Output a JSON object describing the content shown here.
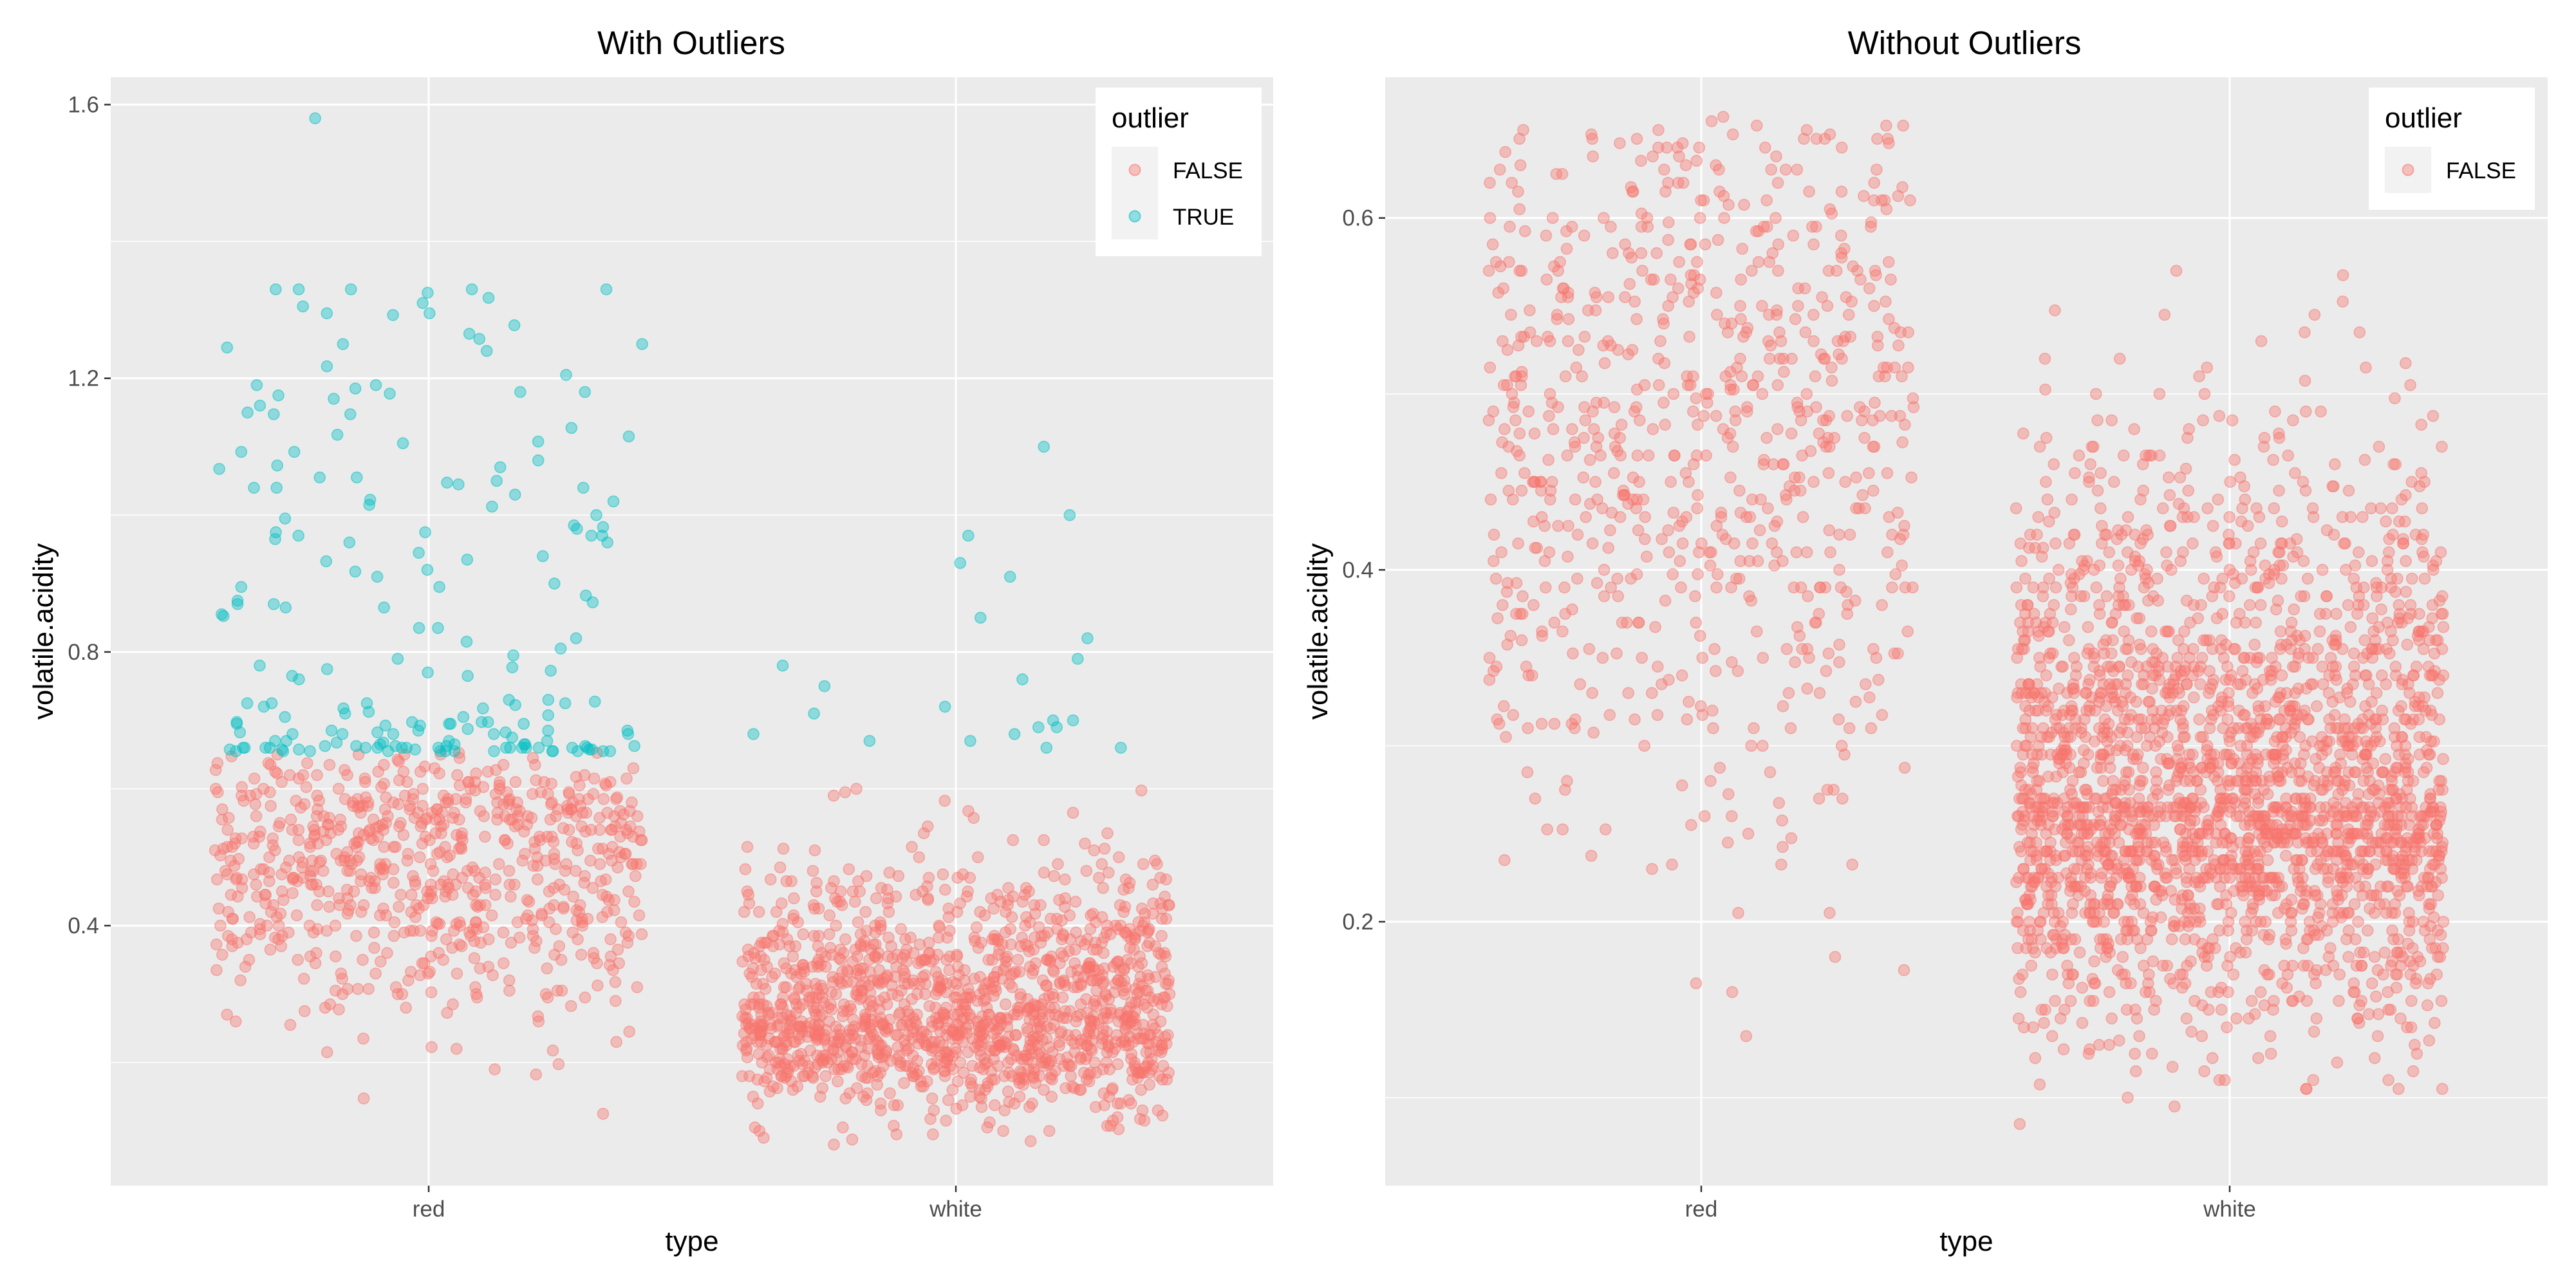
{
  "colors": {
    "panel_background": "#ebebeb",
    "grid": "#ffffff",
    "false_color": "#F8766D",
    "true_color": "#00BFC4",
    "text": "#000000",
    "tick_text": "#4d4d4d"
  },
  "chart_data": [
    {
      "type": "scatter",
      "jitter": "horizontal",
      "title": "With Outliers",
      "xlabel": "type",
      "ylabel": "volatile.acidity",
      "categories": [
        "red",
        "white"
      ],
      "yticks": [
        "0.4",
        "0.8",
        "1.2",
        "1.6"
      ],
      "ylim": [
        0.02,
        1.64
      ],
      "grid": true,
      "legend": {
        "title": "outlier",
        "placement": "top-right",
        "entries": [
          {
            "label": "FALSE",
            "color": "#F8766D"
          },
          {
            "label": "TRUE",
            "color": "#00BFC4"
          }
        ]
      },
      "series": [
        {
          "name": "FALSE",
          "color": "#F8766D",
          "groups": [
            {
              "category": "red",
              "range": [
                0.12,
                0.65
              ],
              "center": 0.5,
              "spread": 0.12,
              "count": 700,
              "distribution": "normal"
            },
            {
              "category": "white",
              "range": [
                0.08,
                0.65
              ],
              "center": 0.27,
              "spread": 0.09,
              "count": 1400,
              "distribution": "skewed"
            }
          ]
        },
        {
          "name": "TRUE",
          "color": "#00BFC4",
          "groups": [
            {
              "category": "red",
              "range": [
                0.655,
                1.33
              ],
              "count": 190,
              "distribution": "decreasing"
            },
            {
              "category": "red",
              "x_jitter": 0,
              "values": [
                1.58,
                1.33,
                1.33,
                1.24,
                1.185,
                1.18
              ]
            },
            {
              "category": "white",
              "range": [
                0.655,
                1.1
              ],
              "values": [
                1.1,
                1.0,
                0.97,
                0.93,
                0.91,
                0.85,
                0.82,
                0.79,
                0.78,
                0.76,
                0.75,
                0.71,
                0.7,
                0.69,
                0.68,
                0.67,
                0.67,
                0.66,
                0.66,
                0.7,
                0.69,
                0.72,
                0.68
              ]
            }
          ]
        }
      ]
    },
    {
      "type": "scatter",
      "jitter": "horizontal",
      "title": "Without Outliers",
      "xlabel": "type",
      "ylabel": "volatile.acidity",
      "categories": [
        "red",
        "white"
      ],
      "yticks": [
        "0.2",
        "0.4",
        "0.6"
      ],
      "ylim": [
        0.05,
        0.68
      ],
      "grid": true,
      "legend": {
        "title": "outlier",
        "placement": "top-right",
        "entries": [
          {
            "label": "FALSE",
            "color": "#F8766D"
          }
        ]
      },
      "series": [
        {
          "name": "FALSE",
          "color": "#F8766D",
          "groups": [
            {
              "category": "red",
              "range": [
                0.12,
                0.655
              ],
              "center": 0.5,
              "spread": 0.12,
              "count": 750,
              "distribution": "normal"
            },
            {
              "category": "white",
              "range": [
                0.08,
                0.655
              ],
              "center": 0.27,
              "spread": 0.08,
              "count": 2400,
              "distribution": "skewed"
            }
          ]
        }
      ]
    }
  ]
}
